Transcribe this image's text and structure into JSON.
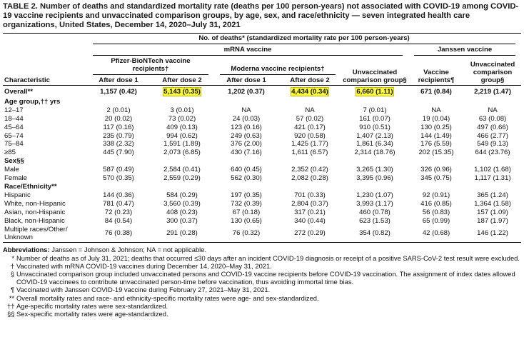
{
  "header": {
    "title": "TABLE 2. Number of deaths and standardized mortality rate (deaths per 100 person-years) not associated with COVID-19 among COVID-19 vaccine recipients and unvaccinated comparison groups, by age, sex, and race/ethnicity — seven integrated health care organizations, United States, December 14, 2020–July 31, 2021"
  },
  "table": {
    "group_header": "No. of deaths* (standardized mortality rate per 100 person-years)",
    "vaccine_groups": [
      "mRNA vaccine",
      "Janssen vaccine"
    ],
    "recipient_groups": [
      "Pfizer-BioNTech vaccine recipients†",
      "Moderna vaccine recipients†"
    ],
    "columns": [
      "Characteristic",
      "After dose 1",
      "After dose 2",
      "After dose 1",
      "After dose 2",
      "Unvaccinated comparison group§",
      "Vaccine recipients¶",
      "Unvaccinated comparison group§"
    ],
    "rows": [
      {
        "label": "Overall**",
        "cells": [
          "1,157 (0.42)",
          "5,143 (0.35)",
          "1,202 (0.37)",
          "4,434 (0.34)",
          "6,660 (1.11)",
          "671 (0.84)",
          "2,219 (1.47)"
        ]
      },
      {
        "section": "Age group,†† yrs"
      },
      {
        "label": "12–17",
        "cells": [
          "2 (0.01)",
          "3 (0.01)",
          "NA",
          "NA",
          "7 (0.01)",
          "NA",
          "NA"
        ]
      },
      {
        "label": "18–44",
        "cells": [
          "20 (0.02)",
          "73 (0.02)",
          "24 (0.03)",
          "57 (0.02)",
          "161 (0.07)",
          "19 (0.04)",
          "63 (0.08)"
        ]
      },
      {
        "label": "45–64",
        "cells": [
          "117 (0.16)",
          "409 (0.13)",
          "123 (0.16)",
          "421 (0.17)",
          "910 (0.51)",
          "130 (0.25)",
          "497 (0.66)"
        ]
      },
      {
        "label": "65–74",
        "cells": [
          "235 (0.79)",
          "994 (0.62)",
          "249 (0.63)",
          "920 (0.58)",
          "1,407 (2.13)",
          "144 (1.49)",
          "466 (2.77)"
        ]
      },
      {
        "label": "75–84",
        "cells": [
          "338 (2.32)",
          "1,591 (1.89)",
          "376 (2.00)",
          "1,425 (1.77)",
          "1,861 (6.34)",
          "176 (5.59)",
          "549 (9.13)"
        ]
      },
      {
        "label": "≥85",
        "cells": [
          "445 (7.90)",
          "2,073 (6.85)",
          "430 (7.16)",
          "1,611 (6.57)",
          "2,314 (18.76)",
          "202 (15.35)",
          "644 (23.76)"
        ]
      },
      {
        "section": "Sex§§"
      },
      {
        "label": "Male",
        "cells": [
          "587 (0.49)",
          "2,584 (0.41)",
          "640 (0.45)",
          "2,352 (0.42)",
          "3,265 (1.30)",
          "326 (0.96)",
          "1,102 (1.68)"
        ]
      },
      {
        "label": "Female",
        "cells": [
          "570 (0.35)",
          "2,559 (0.29)",
          "562 (0.30)",
          "2,082 (0.28)",
          "3,395 (0.96)",
          "345 (0.75)",
          "1,117 (1.31)"
        ]
      },
      {
        "section": "Race/Ethnicity**"
      },
      {
        "label": "Hispanic",
        "cells": [
          "144 (0.36)",
          "584 (0.29)",
          "197 (0.35)",
          "701 (0.33)",
          "1,230 (1.07)",
          "92 (0.91)",
          "365 (1.24)"
        ]
      },
      {
        "label": "White, non-Hispanic",
        "cells": [
          "781 (0.47)",
          "3,560 (0.39)",
          "732 (0.39)",
          "2,804 (0.37)",
          "3,993 (1.17)",
          "416 (0.85)",
          "1,364 (1.58)"
        ]
      },
      {
        "label": "Asian, non-Hispanic",
        "cells": [
          "72 (0.23)",
          "408 (0.23)",
          "67 (0.18)",
          "317 (0.21)",
          "460 (0.78)",
          "56 (0.83)",
          "157 (1.09)"
        ]
      },
      {
        "label": "Black, non-Hispanic",
        "cells": [
          "84 (0.54)",
          "300 (0.37)",
          "130 (0.65)",
          "340 (0.44)",
          "623 (1.53)",
          "65 (0.99)",
          "187 (1.97)"
        ]
      },
      {
        "label": "Multiple races/Other/ Unknown",
        "cells": [
          "76 (0.38)",
          "291 (0.28)",
          "76 (0.32)",
          "272 (0.29)",
          "354 (0.82)",
          "42 (0.68)",
          "146 (1.22)"
        ]
      }
    ]
  },
  "footer": {
    "abbreviations_label": "Abbreviations:",
    "abbreviations": "Janssen = Johnson & Johnson; NA = not applicable.",
    "notes": [
      {
        "mark": "*",
        "text": "Number of deaths as of July 31, 2021; deaths that occurred ≤30 days after an incident COVID-19 diagnosis or receipt of a positive SARS-CoV-2 test result were excluded."
      },
      {
        "mark": "†",
        "text": "Vaccinated with mRNA COVID-19 vaccines during December 14, 2020–May 31, 2021."
      },
      {
        "mark": "§",
        "text": "Unvaccinated comparison group included unvaccinated persons and COVID-19 vaccine recipients before COVID-19 vaccination. The assignment of index dates allowed COVID-19 vaccinees to contribute unvaccinated person-time before vaccination, thus avoiding immortal time bias."
      },
      {
        "mark": "¶",
        "text": "Vaccinated with Janssen COVID-19 vaccine during February 27, 2021–May 31, 2021."
      },
      {
        "mark": "**",
        "text": "Overall mortality rates and race- and ethnicity-specific mortality rates were age- and sex-standardized."
      },
      {
        "mark": "††",
        "text": "Age-specific mortality rates were sex-standardized."
      },
      {
        "mark": "§§",
        "text": "Sex-specific mortality rates were age-standardized."
      }
    ]
  }
}
